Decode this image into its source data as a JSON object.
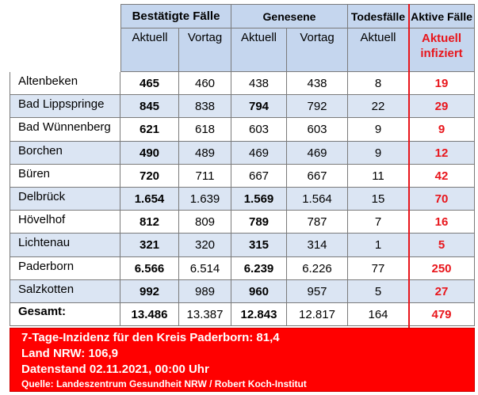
{
  "headers": {
    "confirmed": "Bestätigte Fälle",
    "recovered": "Genesene",
    "deaths": "Todesfälle",
    "active": "Aktive Fälle",
    "current": "Aktuell",
    "previous": "Vortag",
    "active_sub": "Aktuell infiziert"
  },
  "rows": [
    {
      "name": "Altenbeken",
      "conf_cur": "465",
      "conf_prev": "460",
      "rec_cur": "438",
      "rec_prev": "438",
      "deaths": "8",
      "active": "19",
      "rec_bold": false
    },
    {
      "name": "Bad Lippspringe",
      "conf_cur": "845",
      "conf_prev": "838",
      "rec_cur": "794",
      "rec_prev": "792",
      "deaths": "22",
      "active": "29",
      "rec_bold": true
    },
    {
      "name": "Bad Wünnenberg",
      "conf_cur": "621",
      "conf_prev": "618",
      "rec_cur": "603",
      "rec_prev": "603",
      "deaths": "9",
      "active": "9",
      "rec_bold": false
    },
    {
      "name": "Borchen",
      "conf_cur": "490",
      "conf_prev": "489",
      "rec_cur": "469",
      "rec_prev": "469",
      "deaths": "9",
      "active": "12",
      "rec_bold": false
    },
    {
      "name": "Büren",
      "conf_cur": "720",
      "conf_prev": "711",
      "rec_cur": "667",
      "rec_prev": "667",
      "deaths": "11",
      "active": "42",
      "rec_bold": false
    },
    {
      "name": "Delbrück",
      "conf_cur": "1.654",
      "conf_prev": "1.639",
      "rec_cur": "1.569",
      "rec_prev": "1.564",
      "deaths": "15",
      "active": "70",
      "rec_bold": true
    },
    {
      "name": "Hövelhof",
      "conf_cur": "812",
      "conf_prev": "809",
      "rec_cur": "789",
      "rec_prev": "787",
      "deaths": "7",
      "active": "16",
      "rec_bold": true
    },
    {
      "name": "Lichtenau",
      "conf_cur": "321",
      "conf_prev": "320",
      "rec_cur": "315",
      "rec_prev": "314",
      "deaths": "1",
      "active": "5",
      "rec_bold": true
    },
    {
      "name": "Paderborn",
      "conf_cur": "6.566",
      "conf_prev": "6.514",
      "rec_cur": "6.239",
      "rec_prev": "6.226",
      "deaths": "77",
      "active": "250",
      "rec_bold": true
    },
    {
      "name": "Salzkotten",
      "conf_cur": "992",
      "conf_prev": "989",
      "rec_cur": "960",
      "rec_prev": "957",
      "deaths": "5",
      "active": "27",
      "rec_bold": true
    }
  ],
  "total": {
    "name": "Gesamt:",
    "conf_cur": "13.486",
    "conf_prev": "13.387",
    "rec_cur": "12.843",
    "rec_prev": "12.817",
    "deaths": "164",
    "active": "479"
  },
  "footer": {
    "line1": "7-Tage-Inzidenz für den Kreis Paderborn: 81,4",
    "line2": "Land NRW: 106,9",
    "line3": "Datenstand 02.11.2021, 00:00 Uhr",
    "source": "Quelle: Landeszentrum Gesundheit NRW / Robert Koch-Institut"
  },
  "colors": {
    "header_bg": "#c5d6ee",
    "row_alt_bg": "#dbe5f3",
    "accent_red": "#e8151b",
    "footer_bg": "#ff0000"
  }
}
